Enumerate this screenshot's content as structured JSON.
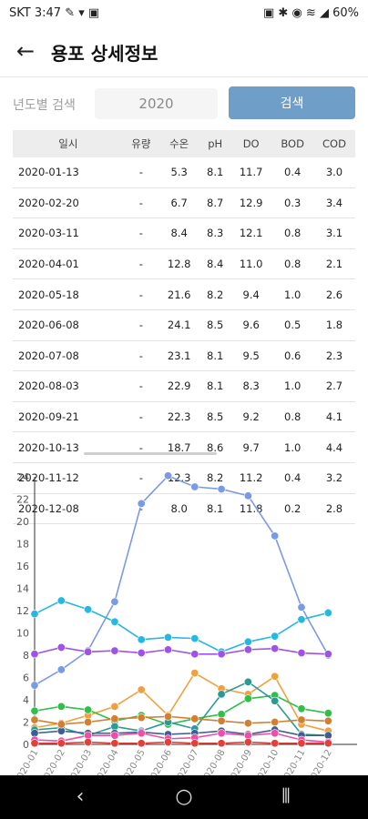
{
  "status": {
    "time": "SKT 3:47",
    "left_icons": "✎ ▾ ▣",
    "right_icons": "▣ ✱ ◉ ≋ ◢",
    "battery": "60%"
  },
  "header": {
    "title": "용포 상세정보"
  },
  "search": {
    "label": "년도별 검색",
    "year": "2020",
    "button_label": "검색"
  },
  "table": {
    "columns": [
      "일시",
      "유량",
      "수온",
      "pH",
      "DO",
      "BOD",
      "COD"
    ],
    "rows": [
      [
        "2020-01-13",
        "-",
        "5.3",
        "8.1",
        "11.7",
        "0.4",
        "3.0"
      ],
      [
        "2020-02-20",
        "-",
        "6.7",
        "8.7",
        "12.9",
        "0.3",
        "3.4"
      ],
      [
        "2020-03-11",
        "-",
        "8.4",
        "8.3",
        "12.1",
        "0.8",
        "3.1"
      ],
      [
        "2020-04-01",
        "-",
        "12.8",
        "8.4",
        "11.0",
        "0.8",
        "2.1"
      ],
      [
        "2020-05-18",
        "-",
        "21.6",
        "8.2",
        "9.4",
        "1.0",
        "2.6"
      ],
      [
        "2020-06-08",
        "-",
        "24.1",
        "8.5",
        "9.6",
        "0.5",
        "1.8"
      ],
      [
        "2020-07-08",
        "-",
        "23.1",
        "8.1",
        "9.5",
        "0.6",
        "2.3"
      ],
      [
        "2020-08-03",
        "-",
        "22.9",
        "8.1",
        "8.3",
        "1.0",
        "2.7"
      ],
      [
        "2020-09-21",
        "-",
        "22.3",
        "8.5",
        "9.2",
        "0.8",
        "4.1"
      ],
      [
        "2020-10-13",
        "-",
        "18.7",
        "8.6",
        "9.7",
        "1.0",
        "4.4"
      ],
      [
        "2020-11-12",
        "-",
        "12.3",
        "8.2",
        "11.2",
        "0.4",
        "3.2"
      ],
      [
        "2020-12-08",
        "-",
        "8.0",
        "8.1",
        "11.8",
        "0.2",
        "2.8"
      ]
    ]
  },
  "chart_data": {
    "type": "line",
    "categories": [
      "2020-01",
      "2020-02",
      "2020-03",
      "2020-04",
      "2020-05",
      "2020-06",
      "2020-07",
      "2020-08",
      "2020-09",
      "2020-10",
      "2020-11",
      "2020-12"
    ],
    "ylim": [
      0,
      24
    ],
    "yticks": [
      0,
      2,
      4,
      6,
      8,
      10,
      12,
      14,
      16,
      18,
      20,
      22,
      24
    ],
    "grid": false,
    "series": [
      {
        "color": "#7b9ae6",
        "values": [
          5.3,
          6.7,
          8.4,
          12.8,
          21.6,
          24.1,
          23.1,
          22.9,
          22.3,
          18.7,
          12.3,
          8.0
        ]
      },
      {
        "color": "#27b7e3",
        "values": [
          11.7,
          12.9,
          12.1,
          11.0,
          9.4,
          9.6,
          9.5,
          8.3,
          9.2,
          9.7,
          11.2,
          11.8
        ]
      },
      {
        "color": "#a052e6",
        "values": [
          8.1,
          8.7,
          8.3,
          8.4,
          8.2,
          8.5,
          8.1,
          8.1,
          8.5,
          8.6,
          8.2,
          8.1
        ]
      },
      {
        "color": "#f0a040",
        "values": [
          1.5,
          1.9,
          2.6,
          3.4,
          4.9,
          2.6,
          6.4,
          5.0,
          4.5,
          6.1,
          1.8,
          1.2
        ]
      },
      {
        "color": "#2fbf4a",
        "values": [
          3.0,
          3.4,
          3.1,
          2.1,
          2.6,
          1.8,
          2.3,
          2.7,
          4.1,
          4.4,
          3.2,
          2.8
        ]
      },
      {
        "color": "#2a9a94",
        "values": [
          1.3,
          1.5,
          0.8,
          1.6,
          1.2,
          2.0,
          1.4,
          4.5,
          5.6,
          3.9,
          0.9,
          0.8
        ]
      },
      {
        "color": "#3d5f8f",
        "values": [
          1.0,
          1.2,
          1.0,
          1.0,
          1.1,
          0.9,
          1.0,
          1.2,
          0.9,
          1.3,
          0.8,
          0.8
        ]
      },
      {
        "color": "#d08030",
        "values": [
          2.2,
          1.8,
          2.0,
          2.3,
          2.4,
          2.5,
          2.3,
          2.1,
          1.9,
          2.0,
          2.2,
          2.1
        ]
      },
      {
        "color": "#ee4da8",
        "values": [
          0.4,
          0.3,
          0.8,
          0.8,
          1.0,
          0.5,
          0.6,
          1.0,
          0.8,
          1.0,
          0.4,
          0.2
        ]
      },
      {
        "color": "#e3403a",
        "values": [
          0.1,
          0.1,
          0.2,
          0.1,
          0.1,
          0.2,
          0.1,
          0.1,
          0.2,
          0.1,
          0.1,
          0.1
        ]
      }
    ]
  },
  "nav": {
    "back": "‹",
    "home": "○",
    "recents": "⦀"
  }
}
